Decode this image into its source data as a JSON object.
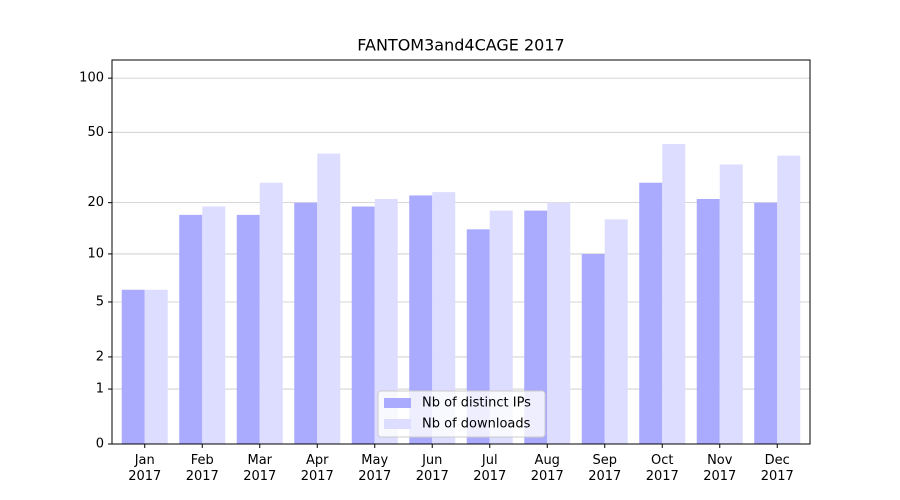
{
  "chart_data": {
    "type": "bar",
    "title": "FANTOM3and4CAGE 2017",
    "categories": [
      "Jan\n2017",
      "Feb\n2017",
      "Mar\n2017",
      "Apr\n2017",
      "May\n2017",
      "Jun\n2017",
      "Jul\n2017",
      "Aug\n2017",
      "Sep\n2017",
      "Oct\n2017",
      "Nov\n2017",
      "Dec\n2017"
    ],
    "series": [
      {
        "name": "Nb of distinct IPs",
        "color": "#aaaaff",
        "values": [
          6,
          17,
          17,
          20,
          19,
          22,
          14,
          18,
          10,
          26,
          21,
          20
        ]
      },
      {
        "name": "Nb of downloads",
        "color": "#ddddff",
        "values": [
          6,
          19,
          26,
          38,
          21,
          23,
          18,
          20,
          16,
          43,
          33,
          37
        ]
      }
    ],
    "yscale": "log1p",
    "ylim": [
      0,
      126
    ],
    "yticks": [
      0,
      1,
      2,
      5,
      10,
      20,
      50,
      100
    ],
    "grid": true,
    "legend": "lower center"
  }
}
